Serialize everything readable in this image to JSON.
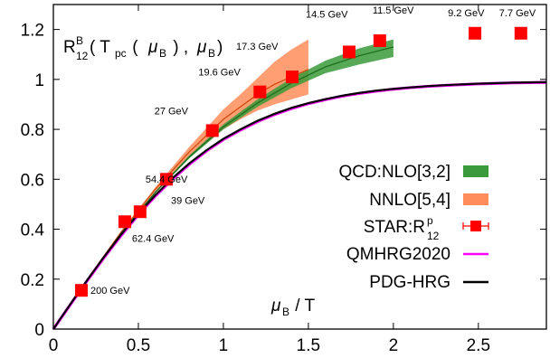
{
  "chart_data": {
    "type": "line",
    "ylabel": {
      "base": "R",
      "sup": "B",
      "sub": "12",
      "tail1": "( T",
      "tail1_sub": "pc",
      "tail2": " ( ",
      "mu1": "μ",
      "mu1_sub": "B",
      "tail3": " ) , ",
      "mu2": "μ",
      "mu2_sub": "B",
      "tail4": ")"
    },
    "xlabel": {
      "mu": "μ",
      "mu_sub": "B",
      "rest": " / T"
    },
    "xlim": [
      0,
      2.9
    ],
    "ylim": [
      0,
      1.3
    ],
    "x_ticks": [
      0,
      0.5,
      1,
      1.5,
      2,
      2.5
    ],
    "x_tick_labels": [
      "0",
      "0.5",
      "1",
      "1.5",
      "2",
      "2.5"
    ],
    "y_ticks": [
      0,
      0.2,
      0.4,
      0.6,
      0.8,
      1,
      1.2
    ],
    "y_tick_labels": [
      "0",
      "0.2",
      "0.4",
      "0.6",
      "0.8",
      "1",
      "1.2"
    ],
    "colors": {
      "qcd_nlo": "#3a9a3a",
      "nnlo": "#ff8c5a",
      "star": "#ff0000",
      "qmhrg": "#ff00ff",
      "pdg": "#000000"
    },
    "series": [
      {
        "name": "PDG-HRG",
        "kind": "line",
        "x": [
          0,
          0.1,
          0.2,
          0.3,
          0.4,
          0.5,
          0.6,
          0.7,
          0.8,
          0.9,
          1.0,
          1.1,
          1.2,
          1.3,
          1.4,
          1.5,
          1.6,
          1.7,
          1.8,
          1.9,
          2.0,
          2.1,
          2.2,
          2.3,
          2.4,
          2.5,
          2.6,
          2.7,
          2.8,
          2.9
        ],
        "y": [
          0,
          0.1,
          0.197,
          0.291,
          0.38,
          0.462,
          0.537,
          0.604,
          0.664,
          0.716,
          0.762,
          0.8,
          0.834,
          0.862,
          0.886,
          0.905,
          0.921,
          0.935,
          0.946,
          0.955,
          0.962,
          0.968,
          0.973,
          0.977,
          0.98,
          0.983,
          0.985,
          0.987,
          0.988,
          0.989
        ]
      },
      {
        "name": "QMHRG2020",
        "kind": "line",
        "x": [
          0,
          0.1,
          0.2,
          0.3,
          0.4,
          0.5,
          0.6,
          0.7,
          0.8,
          0.9,
          1.0,
          1.1,
          1.2,
          1.3,
          1.4,
          1.5,
          1.6,
          1.7,
          1.8,
          1.9,
          2.0,
          2.1,
          2.2,
          2.3,
          2.4,
          2.5,
          2.6,
          2.7,
          2.8,
          2.9
        ],
        "y": [
          0,
          0.098,
          0.195,
          0.288,
          0.376,
          0.458,
          0.533,
          0.6,
          0.66,
          0.713,
          0.759,
          0.797,
          0.831,
          0.859,
          0.883,
          0.903,
          0.919,
          0.933,
          0.944,
          0.953,
          0.961,
          0.967,
          0.972,
          0.976,
          0.979,
          0.982,
          0.984,
          0.986,
          0.987,
          0.988
        ]
      },
      {
        "name": "NNLO[5,4]",
        "kind": "band",
        "x": [
          0,
          0.2,
          0.4,
          0.6,
          0.8,
          1.0,
          1.1,
          1.2,
          1.3,
          1.4,
          1.5
        ],
        "y": [
          0,
          0.2,
          0.39,
          0.56,
          0.71,
          0.84,
          0.89,
          0.94,
          0.98,
          1.01,
          1.04
        ],
        "lower": [
          0,
          0.2,
          0.388,
          0.552,
          0.69,
          0.8,
          0.84,
          0.875,
          0.9,
          0.92,
          0.94
        ],
        "upper": [
          0,
          0.2,
          0.392,
          0.568,
          0.73,
          0.88,
          0.94,
          1.005,
          1.07,
          1.12,
          1.16
        ]
      },
      {
        "name": "QCD:NLO[3,2]",
        "kind": "band",
        "x": [
          0,
          0.2,
          0.4,
          0.6,
          0.8,
          1.0,
          1.2,
          1.4,
          1.6,
          1.8,
          2.0
        ],
        "y": [
          0,
          0.198,
          0.385,
          0.548,
          0.69,
          0.81,
          0.905,
          0.985,
          1.05,
          1.095,
          1.13
        ],
        "lower": [
          0,
          0.198,
          0.384,
          0.545,
          0.684,
          0.8,
          0.89,
          0.965,
          1.025,
          1.06,
          1.09
        ],
        "upper": [
          0,
          0.198,
          0.386,
          0.551,
          0.696,
          0.82,
          0.92,
          1.005,
          1.075,
          1.125,
          1.16
        ]
      },
      {
        "name": "STAR:R",
        "name_sup": "p",
        "name_sub": "12",
        "kind": "points",
        "points": [
          {
            "x": 0.165,
            "y": 0.155,
            "label": "200 GeV"
          },
          {
            "x": 0.42,
            "y": 0.43,
            "label": "62.4 GeV"
          },
          {
            "x": 0.51,
            "y": 0.47,
            "label": "54.4 GeV"
          },
          {
            "x": 0.665,
            "y": 0.6,
            "label": "39 GeV"
          },
          {
            "x": 0.935,
            "y": 0.795,
            "label": "27 GeV"
          },
          {
            "x": 1.215,
            "y": 0.95,
            "label": "19.6 GeV"
          },
          {
            "x": 1.405,
            "y": 1.01,
            "label": "17.3 GeV"
          },
          {
            "x": 1.74,
            "y": 1.11,
            "label": "14.5 GeV"
          },
          {
            "x": 1.92,
            "y": 1.155,
            "label": "11.5 GeV"
          },
          {
            "x": 2.48,
            "y": 1.185,
            "label": "9.2 GeV"
          },
          {
            "x": 2.75,
            "y": 1.185,
            "label": "7.7 GeV"
          }
        ]
      }
    ],
    "legend": {
      "placement": "bottom-right",
      "entries": [
        "QCD:NLO[3,2]",
        "NNLO[5,4]",
        "STAR:R",
        "QMHRG2020",
        "PDG-HRG"
      ]
    }
  }
}
